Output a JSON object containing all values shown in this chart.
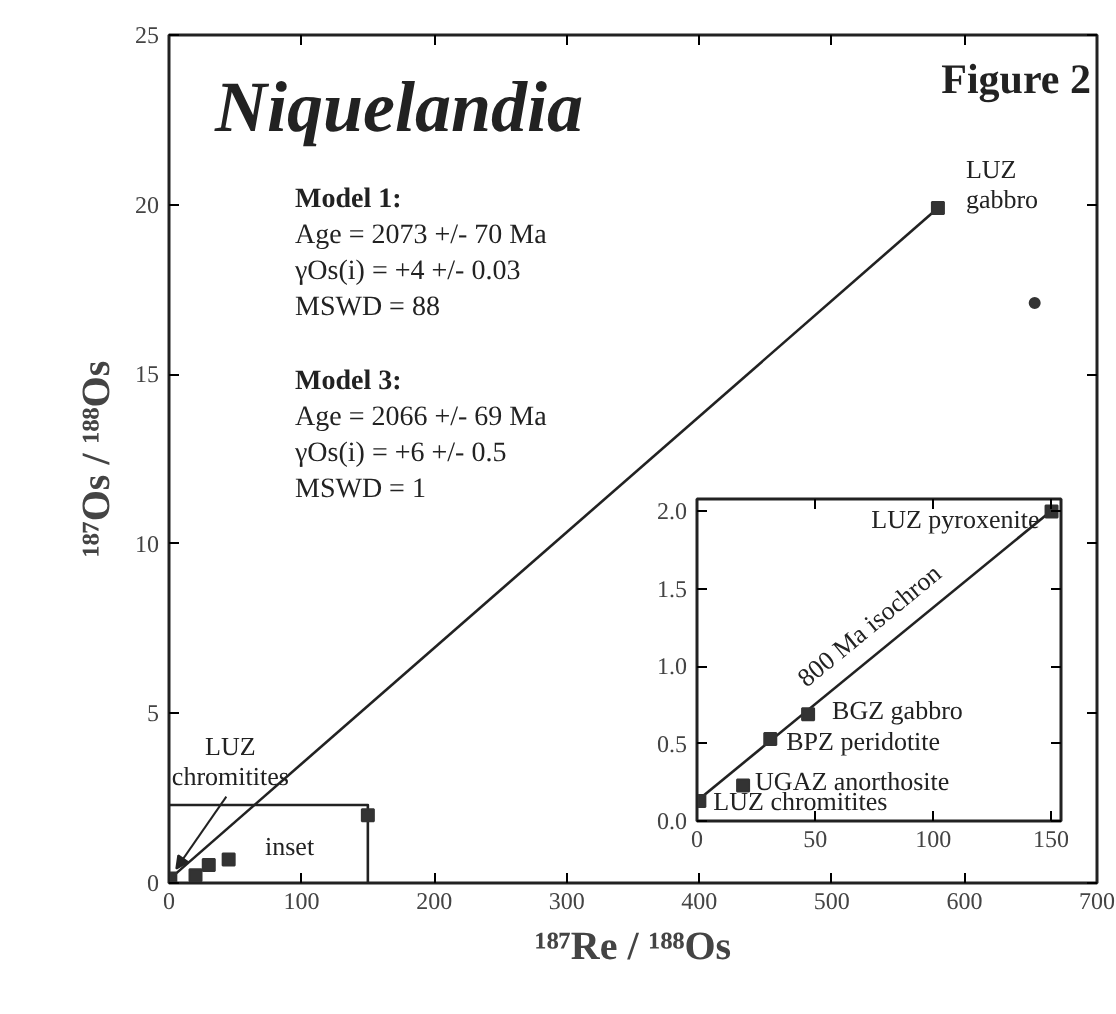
{
  "chart_data": [
    {
      "type": "scatter",
      "title": "Niquelandia",
      "xlabel": "¹⁸⁷Re / ¹⁸⁸Os",
      "ylabel": "¹⁸⁷Os / ¹⁸⁸Os",
      "xlim": [
        0,
        700
      ],
      "ylim": [
        0,
        25
      ],
      "xticks": [
        0,
        100,
        200,
        300,
        400,
        500,
        600,
        700
      ],
      "yticks": [
        0,
        5,
        10,
        15,
        20,
        25
      ],
      "grid": false,
      "series": [
        {
          "type": "line",
          "color": "#222222",
          "line_style": "solid",
          "marker": "none",
          "x": [
            0,
            580
          ],
          "values": [
            0.1,
            19.9
          ]
        },
        {
          "type": "line",
          "color": "#222222",
          "line_style": "solid",
          "marker": "none",
          "x": [
            0,
            150,
            150
          ],
          "values": [
            2.3,
            2.3,
            0
          ]
        },
        {
          "color": "#333333",
          "marker": "square",
          "x": [
            1,
            20,
            30,
            45,
            150,
            580
          ],
          "values": [
            0.13,
            0.23,
            0.53,
            0.69,
            2.0,
            19.9
          ]
        },
        {
          "color": "#333333",
          "marker": "circle",
          "x": [
            653
          ],
          "values": [
            17.1
          ]
        }
      ],
      "annotations": [
        {
          "text": "LUZ gabbro",
          "x": 580,
          "y": 19.9
        },
        {
          "text": "LUZ chromitites",
          "x": 1,
          "y": 0.13
        },
        "Figure 2",
        "Model 1:",
        "Age = 2073 +/- 70 Ma",
        "γOs(i) = +4 +/- 0.03",
        "MSWD = 88",
        "Model 3:",
        "Age = 2066 +/- 69 Ma",
        "γOs(i) = +6 +/- 0.5",
        "MSWD = 1",
        "inset"
      ]
    },
    {
      "type": "scatter",
      "xlim": [
        0,
        154
      ],
      "ylim": [
        0,
        2.08
      ],
      "xticks": [
        0,
        50,
        100,
        150
      ],
      "yticks": [
        {
          "value": 0,
          "label": "0.0"
        },
        {
          "value": 0.5,
          "label": "0.5"
        },
        {
          "value": 1,
          "label": "1.0"
        },
        {
          "value": 1.5,
          "label": "1.5"
        },
        {
          "value": 2,
          "label": "2.0"
        }
      ],
      "grid": false,
      "series": [
        {
          "type": "line",
          "color": "#222222",
          "line_style": "solid",
          "marker": "none",
          "x": [
            0,
            152
          ],
          "values": [
            0.13,
            2.03
          ]
        },
        {
          "color": "#333333",
          "marker": "square",
          "x": [
            1,
            19.5,
            31,
            47,
            150
          ],
          "values": [
            0.13,
            0.23,
            0.53,
            0.69,
            2.0
          ]
        }
      ],
      "annotations": [
        {
          "text": "LUZ pyroxenite",
          "x": 150,
          "y": 2.0
        },
        {
          "text": "800 Ma isochron",
          "x": 80,
          "y": 1.13
        },
        {
          "text": "BGZ gabbro",
          "x": 47,
          "y": 0.69
        },
        {
          "text": "BPZ peridotite",
          "x": 31,
          "y": 0.53
        },
        {
          "text": "UGAZ anorthosite",
          "x": 19.5,
          "y": 0.23
        },
        {
          "text": "LUZ chromitites",
          "x": 1,
          "y": 0.13
        }
      ]
    }
  ]
}
